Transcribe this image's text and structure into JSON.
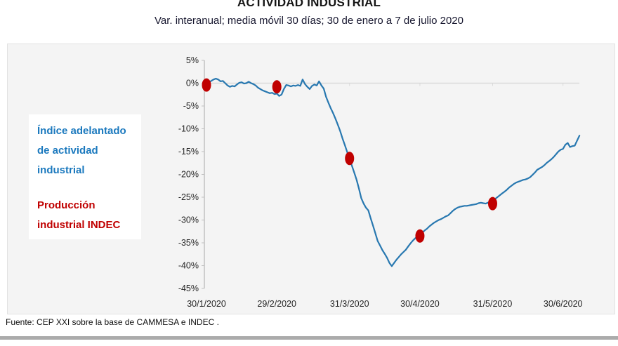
{
  "header": {
    "title": "ACTIVIDAD INDUSTRIAL",
    "subtitle": "Var. interanual; media móvil 30 días; 30 de enero a 7 de julio 2020"
  },
  "legend": {
    "leading_index_label": "Índice adelantado de actividad industrial",
    "indec_label": "Producción industrial INDEC"
  },
  "footer": {
    "source": "Fuente: CEP XXI sobre la base de CAMMESA e INDEC ."
  },
  "colors": {
    "line_blue": "#2878B0",
    "dot_red": "#C00000",
    "legend_blue": "#1B79BE",
    "legend_red": "#C00000",
    "axis_gray": "#BFBFBF",
    "zero_line_gray": "#D9D9D9",
    "tick_text": "#262626",
    "panel_bg": "#F4F4F4",
    "bottom_bar": "#ABABAB"
  },
  "chart_data": {
    "type": "line",
    "title": "ACTIVIDAD INDUSTRIAL",
    "subtitle": "Var. interanual; media móvil 30 días; 30 de enero a 7 de julio 2020",
    "x_axis": {
      "unit": "days since 30/1/2020",
      "tick_labels": [
        "30/1/2020",
        "29/2/2020",
        "31/3/2020",
        "30/4/2020",
        "31/5/2020",
        "30/6/2020"
      ],
      "tick_days": [
        0,
        30,
        61,
        91,
        122,
        152
      ],
      "range_days": [
        0,
        159
      ]
    },
    "y_axis": {
      "tick_labels": [
        "5%",
        "0%",
        "-5%",
        "-10%",
        "-15%",
        "-20%",
        "-25%",
        "-30%",
        "-35%",
        "-40%",
        "-45%"
      ],
      "tick_values": [
        5,
        0,
        -5,
        -10,
        -15,
        -20,
        -25,
        -30,
        -35,
        -40,
        -45
      ],
      "ylim": [
        -45,
        5
      ],
      "grid": false
    },
    "legend_position": "left",
    "series": [
      {
        "name": "Índice adelantado de actividad industrial",
        "type": "line",
        "color": "#2878B0",
        "points": [
          [
            0,
            -0.3
          ],
          [
            1,
            0.1
          ],
          [
            2,
            0.5
          ],
          [
            3,
            0.8
          ],
          [
            4,
            1.0
          ],
          [
            5,
            0.8
          ],
          [
            6,
            0.4
          ],
          [
            7,
            0.5
          ],
          [
            8,
            0.0
          ],
          [
            9,
            -0.5
          ],
          [
            10,
            -0.8
          ],
          [
            11,
            -0.6
          ],
          [
            12,
            -0.7
          ],
          [
            13,
            -0.3
          ],
          [
            14,
            0.1
          ],
          [
            15,
            0.2
          ],
          [
            16,
            -0.1
          ],
          [
            17,
            0.0
          ],
          [
            18,
            0.3
          ],
          [
            19,
            0.0
          ],
          [
            20,
            -0.2
          ],
          [
            21,
            -0.5
          ],
          [
            22,
            -1.0
          ],
          [
            23,
            -1.3
          ],
          [
            24,
            -1.6
          ],
          [
            25,
            -1.8
          ],
          [
            26,
            -2.0
          ],
          [
            27,
            -2.2
          ],
          [
            28,
            -2.1
          ],
          [
            29,
            -2.4
          ],
          [
            30,
            -2.3
          ],
          [
            31,
            -2.8
          ],
          [
            32,
            -2.5
          ],
          [
            33,
            -1.3
          ],
          [
            34,
            -0.4
          ],
          [
            35,
            -0.5
          ],
          [
            36,
            -0.7
          ],
          [
            37,
            -0.5
          ],
          [
            38,
            -0.6
          ],
          [
            39,
            -0.4
          ],
          [
            40,
            -0.6
          ],
          [
            41,
            0.8
          ],
          [
            42,
            -0.2
          ],
          [
            43,
            -0.8
          ],
          [
            44,
            -1.3
          ],
          [
            45,
            -0.6
          ],
          [
            46,
            -0.3
          ],
          [
            47,
            -0.5
          ],
          [
            48,
            0.4
          ],
          [
            49,
            -0.5
          ],
          [
            50,
            -1.2
          ],
          [
            51,
            -3.0
          ],
          [
            52,
            -4.3
          ],
          [
            53,
            -5.5
          ],
          [
            54,
            -6.6
          ],
          [
            55,
            -7.8
          ],
          [
            56,
            -9.1
          ],
          [
            57,
            -10.5
          ],
          [
            58,
            -12.1
          ],
          [
            59,
            -13.6
          ],
          [
            60,
            -15.1
          ],
          [
            61,
            -16.6
          ],
          [
            62,
            -18.1
          ],
          [
            63,
            -19.6
          ],
          [
            64,
            -21.2
          ],
          [
            65,
            -23.1
          ],
          [
            66,
            -25.2
          ],
          [
            67,
            -26.4
          ],
          [
            68,
            -27.3
          ],
          [
            69,
            -27.9
          ],
          [
            70,
            -29.6
          ],
          [
            71,
            -31.2
          ],
          [
            72,
            -32.9
          ],
          [
            73,
            -34.6
          ],
          [
            74,
            -35.6
          ],
          [
            75,
            -36.6
          ],
          [
            76,
            -37.4
          ],
          [
            77,
            -38.3
          ],
          [
            78,
            -39.4
          ],
          [
            79,
            -40.1
          ],
          [
            80,
            -39.4
          ],
          [
            81,
            -38.7
          ],
          [
            82,
            -38.1
          ],
          [
            83,
            -37.5
          ],
          [
            84,
            -37.0
          ],
          [
            85,
            -36.5
          ],
          [
            86,
            -35.8
          ],
          [
            87,
            -35.1
          ],
          [
            88,
            -34.5
          ],
          [
            89,
            -34.0
          ],
          [
            90,
            -33.6
          ],
          [
            91,
            -33.2
          ],
          [
            92,
            -32.8
          ],
          [
            93,
            -32.3
          ],
          [
            94,
            -31.9
          ],
          [
            95,
            -31.4
          ],
          [
            96,
            -31.0
          ],
          [
            97,
            -30.6
          ],
          [
            98,
            -30.3
          ],
          [
            99,
            -30.0
          ],
          [
            100,
            -29.8
          ],
          [
            101,
            -29.5
          ],
          [
            102,
            -29.2
          ],
          [
            103,
            -29.0
          ],
          [
            104,
            -28.5
          ],
          [
            105,
            -28.0
          ],
          [
            106,
            -27.6
          ],
          [
            107,
            -27.3
          ],
          [
            108,
            -27.1
          ],
          [
            109,
            -27.0
          ],
          [
            110,
            -26.9
          ],
          [
            111,
            -26.9
          ],
          [
            112,
            -26.8
          ],
          [
            113,
            -26.7
          ],
          [
            114,
            -26.6
          ],
          [
            115,
            -26.5
          ],
          [
            116,
            -26.3
          ],
          [
            117,
            -26.2
          ],
          [
            118,
            -26.3
          ],
          [
            119,
            -26.4
          ],
          [
            120,
            -26.2
          ],
          [
            121,
            -26.0
          ],
          [
            122,
            -25.8
          ],
          [
            123,
            -25.4
          ],
          [
            124,
            -25.0
          ],
          [
            125,
            -24.6
          ],
          [
            126,
            -24.2
          ],
          [
            127,
            -23.8
          ],
          [
            128,
            -23.4
          ],
          [
            129,
            -22.9
          ],
          [
            130,
            -22.5
          ],
          [
            131,
            -22.1
          ],
          [
            132,
            -21.8
          ],
          [
            133,
            -21.6
          ],
          [
            134,
            -21.4
          ],
          [
            135,
            -21.2
          ],
          [
            136,
            -21.1
          ],
          [
            137,
            -20.9
          ],
          [
            138,
            -20.6
          ],
          [
            139,
            -20.1
          ],
          [
            140,
            -19.6
          ],
          [
            141,
            -19.0
          ],
          [
            142,
            -18.7
          ],
          [
            143,
            -18.4
          ],
          [
            144,
            -18.0
          ],
          [
            145,
            -17.5
          ],
          [
            146,
            -17.1
          ],
          [
            147,
            -16.7
          ],
          [
            148,
            -16.2
          ],
          [
            149,
            -15.6
          ],
          [
            150,
            -15.0
          ],
          [
            151,
            -14.6
          ],
          [
            152,
            -14.4
          ],
          [
            153,
            -13.5
          ],
          [
            154,
            -13.1
          ],
          [
            155,
            -14.0
          ],
          [
            156,
            -13.8
          ],
          [
            157,
            -13.7
          ],
          [
            158,
            -12.6
          ],
          [
            159,
            -11.5
          ]
        ]
      },
      {
        "name": "Producción industrial INDEC",
        "type": "scatter",
        "color": "#C00000",
        "points": [
          [
            0,
            -0.4
          ],
          [
            30,
            -0.8
          ],
          [
            61,
            -16.5
          ],
          [
            91,
            -33.5
          ],
          [
            122,
            -26.4
          ]
        ]
      }
    ]
  }
}
